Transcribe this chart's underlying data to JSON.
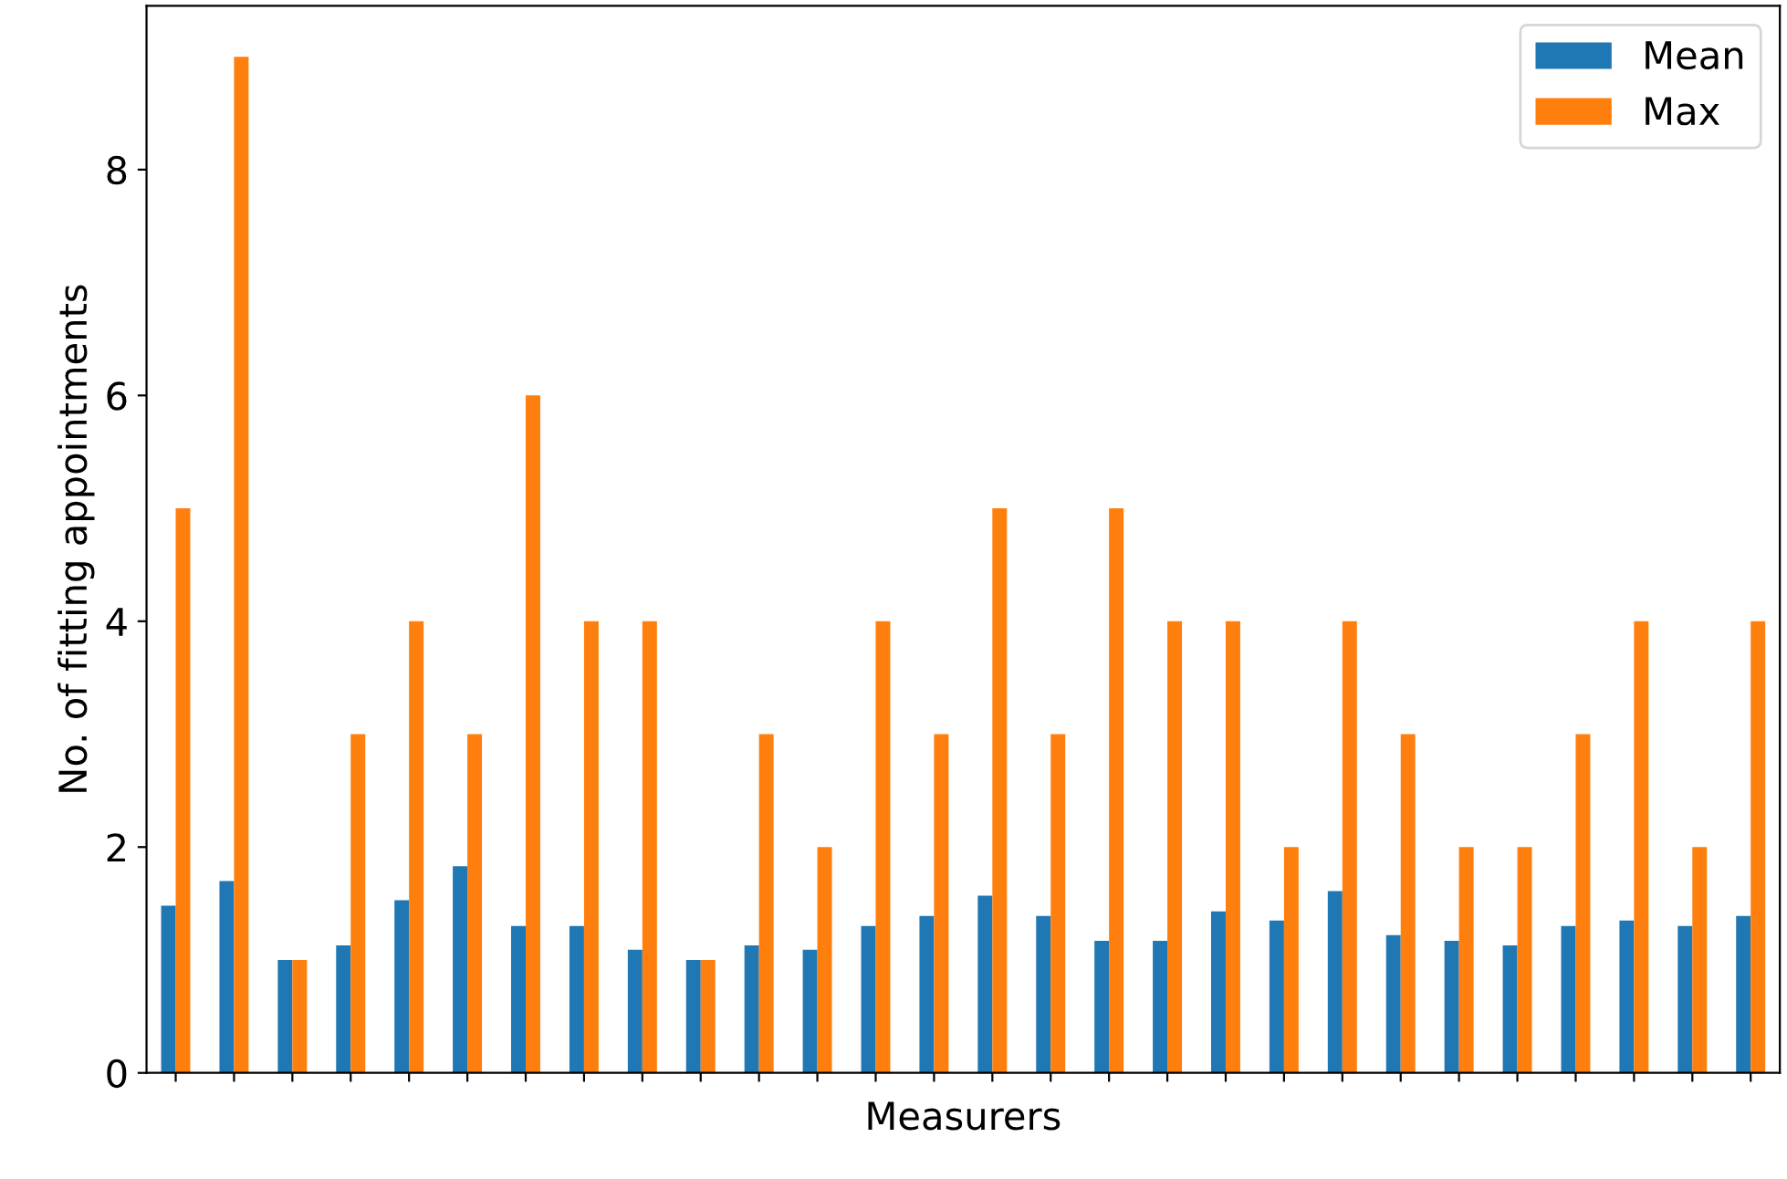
{
  "chart_data": {
    "type": "bar",
    "xlabel": "Measurers",
    "ylabel": "No. of fitting appointments",
    "categories": [
      null,
      null,
      null,
      null,
      null,
      null,
      null,
      null,
      null,
      null,
      null,
      null,
      null,
      null,
      null,
      null,
      null,
      null,
      null,
      null,
      null,
      null,
      null,
      null,
      null,
      null,
      null,
      null
    ],
    "series": [
      {
        "name": "Mean",
        "color": "#1f77b4",
        "values": [
          1.48,
          1.7,
          1.0,
          1.13,
          1.53,
          1.83,
          1.3,
          1.3,
          1.09,
          1.0,
          1.13,
          1.09,
          1.3,
          1.39,
          1.57,
          1.39,
          1.17,
          1.17,
          1.43,
          1.35,
          1.61,
          1.22,
          1.17,
          1.13,
          1.3,
          1.35,
          1.3,
          1.39
        ]
      },
      {
        "name": "Max",
        "color": "#ff7f0e",
        "values": [
          5,
          9,
          1,
          3,
          4,
          3,
          6,
          4,
          4,
          1,
          3,
          2,
          4,
          3,
          5,
          3,
          5,
          4,
          4,
          2,
          4,
          3,
          2,
          2,
          3,
          4,
          2,
          4
        ]
      }
    ],
    "ylim": [
      0,
      9.45
    ],
    "yticks": [
      0,
      2,
      4,
      6,
      8
    ],
    "grid": false,
    "legend": "top right"
  }
}
